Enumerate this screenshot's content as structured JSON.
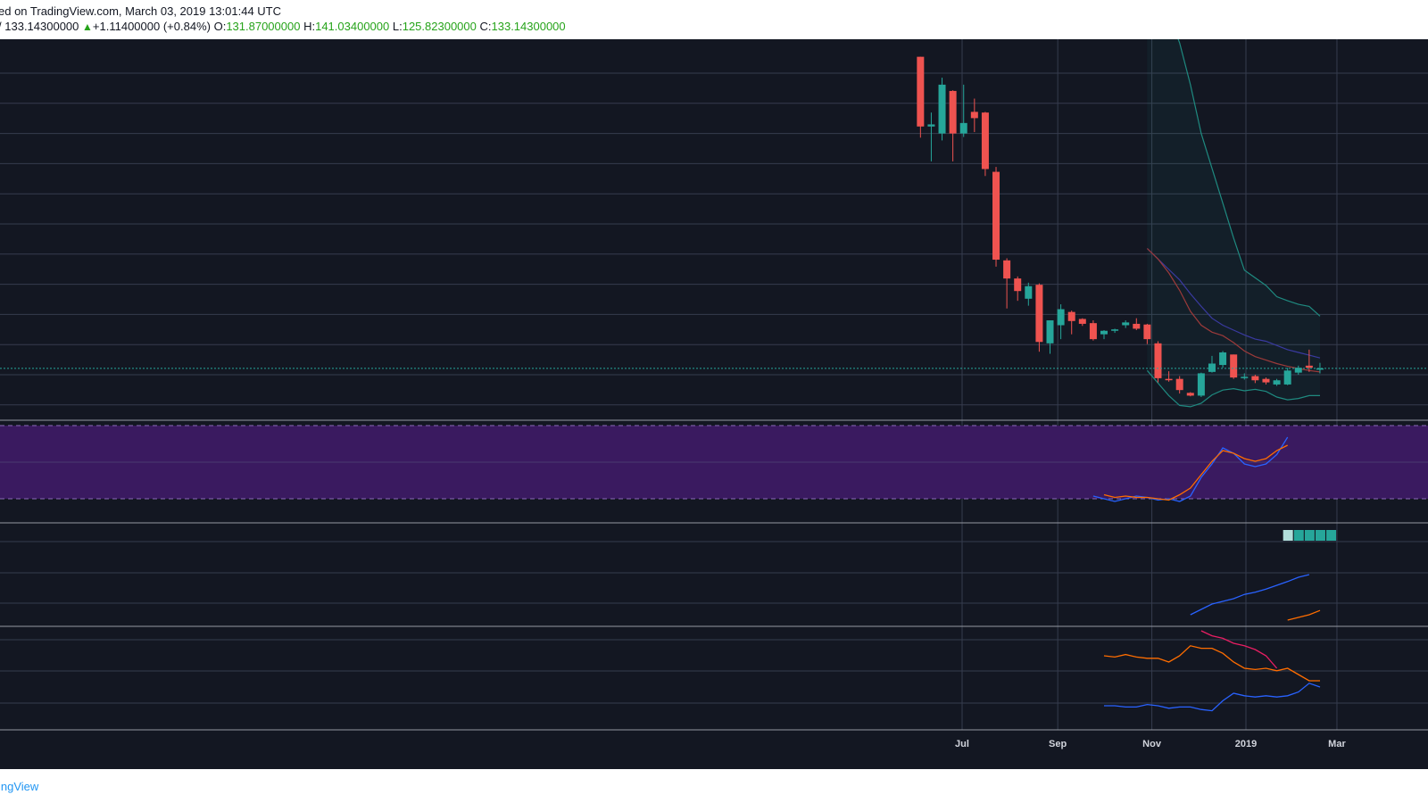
{
  "header": {
    "published_text": "ed on TradingView.com, March 03, 2019 13:01:44 UTC",
    "symbol_fragment": "/",
    "last_price": "133.14300000",
    "change": "+1.11400000 (+0.84%)",
    "open_label": "O:",
    "open_value": "131.87000000",
    "high_label": "H:",
    "high_value": "141.03400000",
    "low_label": "L:",
    "low_value": "125.82300000",
    "close_label": "C:",
    "close_value": "133.14300000"
  },
  "footer": {
    "brand": "ingView"
  },
  "colors": {
    "background": "#131722",
    "grid": "#363c4e",
    "up": "#26a69a",
    "down": "#ef5350",
    "rsi_band": "#3a1a60",
    "header_green": "#26a31a",
    "brand_blue": "#2196f3"
  },
  "chart_data": {
    "type": "candlestick",
    "interval": "weekly",
    "current_price": 133.143,
    "x_axis_labels": [
      {
        "label": "Jul",
        "date": "2018-07-01"
      },
      {
        "label": "Sep",
        "date": "2018-09-01"
      },
      {
        "label": "Nov",
        "date": "2018-11-01"
      },
      {
        "label": "2019",
        "date": "2019-01-01"
      },
      {
        "label": "Mar",
        "date": "2019-03-01"
      }
    ],
    "candles": [
      {
        "date": "2018-06-04",
        "o": 580,
        "h": 580,
        "l": 464,
        "c": 480
      },
      {
        "date": "2018-06-11",
        "o": 480,
        "h": 500,
        "l": 430,
        "c": 483
      },
      {
        "date": "2018-06-18",
        "o": 470,
        "h": 550,
        "l": 460,
        "c": 540
      },
      {
        "date": "2018-06-25",
        "o": 531,
        "h": 532,
        "l": 430,
        "c": 470
      },
      {
        "date": "2018-07-02",
        "o": 470,
        "h": 540,
        "l": 465,
        "c": 485
      },
      {
        "date": "2018-07-09",
        "o": 501,
        "h": 520,
        "l": 472,
        "c": 492
      },
      {
        "date": "2018-07-16",
        "o": 500,
        "h": 501,
        "l": 409,
        "c": 419
      },
      {
        "date": "2018-07-23",
        "o": 415,
        "h": 422,
        "l": 279,
        "c": 289
      },
      {
        "date": "2018-07-30",
        "o": 288,
        "h": 291,
        "l": 219,
        "c": 262
      },
      {
        "date": "2018-08-06",
        "o": 262,
        "h": 265,
        "l": 230,
        "c": 244
      },
      {
        "date": "2018-08-13",
        "o": 233,
        "h": 256,
        "l": 223,
        "c": 251
      },
      {
        "date": "2018-08-20",
        "o": 253,
        "h": 255,
        "l": 157,
        "c": 171
      },
      {
        "date": "2018-08-27",
        "o": 169,
        "h": 200,
        "l": 154,
        "c": 202
      },
      {
        "date": "2018-09-03",
        "o": 195,
        "h": 225,
        "l": 175,
        "c": 218
      },
      {
        "date": "2018-09-10",
        "o": 214,
        "h": 216,
        "l": 182,
        "c": 201
      },
      {
        "date": "2018-09-17",
        "o": 204,
        "h": 205,
        "l": 194,
        "c": 197
      },
      {
        "date": "2018-09-24",
        "o": 198,
        "h": 202,
        "l": 173,
        "c": 175
      },
      {
        "date": "2018-10-01",
        "o": 182,
        "h": 188,
        "l": 175,
        "c": 187
      },
      {
        "date": "2018-10-08",
        "o": 187,
        "h": 190,
        "l": 184,
        "c": 189
      },
      {
        "date": "2018-10-15",
        "o": 195,
        "h": 202,
        "l": 191,
        "c": 199
      },
      {
        "date": "2018-10-22",
        "o": 197,
        "h": 205,
        "l": 188,
        "c": 190
      },
      {
        "date": "2018-10-29",
        "o": 196,
        "h": 197,
        "l": 168,
        "c": 175
      },
      {
        "date": "2018-11-05",
        "o": 169,
        "h": 172,
        "l": 113,
        "c": 119
      },
      {
        "date": "2018-11-12",
        "o": 118,
        "h": 129,
        "l": 114,
        "c": 117
      },
      {
        "date": "2018-11-19",
        "o": 118,
        "h": 122,
        "l": 97,
        "c": 102
      },
      {
        "date": "2018-11-26",
        "o": 98,
        "h": 99,
        "l": 93,
        "c": 94
      },
      {
        "date": "2018-12-03",
        "o": 94,
        "h": 127,
        "l": 92,
        "c": 126
      },
      {
        "date": "2018-12-10",
        "o": 128,
        "h": 151,
        "l": 127,
        "c": 140
      },
      {
        "date": "2018-12-17",
        "o": 138,
        "h": 158,
        "l": 134,
        "c": 156
      },
      {
        "date": "2018-12-24",
        "o": 153,
        "h": 153,
        "l": 118,
        "c": 120
      },
      {
        "date": "2018-12-31",
        "o": 120,
        "h": 126,
        "l": 117,
        "c": 121
      },
      {
        "date": "2019-01-07",
        "o": 122,
        "h": 124,
        "l": 112,
        "c": 116
      },
      {
        "date": "2019-01-14",
        "o": 118,
        "h": 120,
        "l": 110,
        "c": 113
      },
      {
        "date": "2019-01-21",
        "o": 110,
        "h": 118,
        "l": 108,
        "c": 116
      },
      {
        "date": "2019-01-28",
        "o": 110,
        "h": 134,
        "l": 109,
        "c": 130
      },
      {
        "date": "2019-02-04",
        "o": 127,
        "h": 137,
        "l": 124,
        "c": 134
      },
      {
        "date": "2019-02-11",
        "o": 137,
        "h": 160,
        "l": 128,
        "c": 134
      },
      {
        "date": "2019-02-18",
        "o": 131.87,
        "h": 141.034,
        "l": 125.823,
        "c": 133.143
      }
    ],
    "bollinger": {
      "upper": [
        710,
        680,
        640,
        600,
        540,
        470,
        420,
        370,
        320,
        274,
        263,
        252,
        236,
        230,
        225,
        222,
        208
      ],
      "middle": [
        305,
        290,
        275,
        260,
        240,
        222,
        205,
        195,
        188,
        181,
        175,
        172,
        166,
        160,
        156,
        152,
        148
      ],
      "lower": [
        130,
        112,
        94,
        80,
        78,
        83,
        95,
        102,
        104,
        101,
        103,
        100,
        92,
        88,
        90,
        94,
        94
      ]
    },
    "ma_red": [
      305,
      290,
      270,
      245,
      215,
      195,
      185,
      180,
      170,
      158,
      150,
      145,
      140,
      136,
      133,
      130,
      128
    ],
    "rsi": {
      "rsi": [
        24,
        22,
        20,
        22,
        24,
        23,
        21,
        22,
        20,
        24,
        38,
        48,
        60,
        56,
        48,
        46,
        48,
        55,
        68
      ],
      "signal": [
        25,
        23,
        24,
        23,
        23,
        22,
        21,
        25,
        30,
        40,
        50,
        58,
        56,
        52,
        50,
        52,
        58,
        62
      ]
    },
    "histogram": [
      0.6,
      1.0,
      1.0,
      1.0,
      1.0
    ],
    "pane3": {
      "blue": [
        20,
        30,
        40,
        45,
        50,
        58,
        62,
        68,
        75,
        82,
        90,
        95
      ],
      "orange": [
        10,
        15,
        20,
        28
      ]
    },
    "pane4": {
      "crimson": [
        80,
        76,
        74,
        70,
        68,
        65,
        60,
        50
      ],
      "orange": [
        60,
        59,
        61,
        59,
        58,
        58,
        55,
        60,
        68,
        66,
        66,
        62,
        55,
        50,
        49,
        50,
        48,
        50,
        45,
        40,
        40
      ],
      "blue": [
        20,
        20,
        19,
        19,
        21,
        20,
        18,
        19,
        19,
        17,
        16,
        24,
        30,
        28,
        27,
        28,
        27,
        28,
        31,
        38,
        35
      ]
    }
  }
}
